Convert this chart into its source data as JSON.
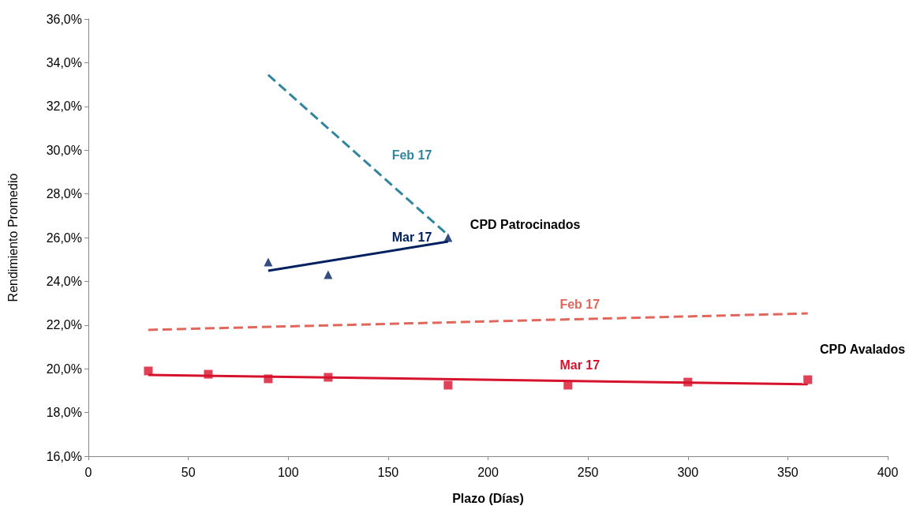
{
  "chart_data": {
    "type": "scatter",
    "xlabel": "Plazo (Días)",
    "ylabel": "Rendimiento Promedio",
    "xlim": [
      0,
      400
    ],
    "xticks": [
      0,
      50,
      100,
      150,
      200,
      250,
      300,
      350,
      400
    ],
    "ylim": [
      16,
      36
    ],
    "yticks": [
      {
        "value": 16,
        "label": "16,0%"
      },
      {
        "value": 18,
        "label": "18,0%"
      },
      {
        "value": 20,
        "label": "20,0%"
      },
      {
        "value": 22,
        "label": "22,0%"
      },
      {
        "value": 24,
        "label": "24,0%"
      },
      {
        "value": 26,
        "label": "26,0%"
      },
      {
        "value": 28,
        "label": "28,0%"
      },
      {
        "value": 30,
        "label": "30,0%"
      },
      {
        "value": 32,
        "label": "32,0%"
      },
      {
        "value": 34,
        "label": "34,0%"
      },
      {
        "value": 36,
        "label": "36,0%"
      }
    ],
    "grid": false,
    "annotations": [
      "CPD Patrocinados",
      "CPD Avalados"
    ],
    "series": [
      {
        "type": "line",
        "name": "Feb 17",
        "color": "#31859c",
        "line_style": "dashed",
        "marker": "none",
        "x": [
          90,
          180
        ],
        "values": [
          33.44,
          26.11
        ]
      },
      {
        "color": "#002060",
        "marker": "triangle",
        "x": [
          90,
          120,
          180
        ],
        "values": [
          24.88,
          24.3,
          26.0
        ]
      },
      {
        "type": "line",
        "name": "Mar 17",
        "color": "#002060",
        "line_style": "solid",
        "marker": "none",
        "x": [
          90,
          180
        ],
        "values": [
          24.48,
          25.82
        ]
      },
      {
        "type": "line",
        "name": "Feb 17",
        "color": "#e0675c",
        "line_style": "dashed",
        "marker": "none",
        "x": [
          30,
          360
        ],
        "values": [
          21.78,
          22.53
        ]
      },
      {
        "color": "#d7122d",
        "marker": "square",
        "x": [
          30,
          60,
          90,
          120,
          180,
          240,
          300,
          360
        ],
        "values": [
          19.9,
          19.75,
          19.54,
          19.61,
          19.25,
          19.25,
          19.39,
          19.5
        ]
      },
      {
        "type": "line",
        "name": "Mar 17",
        "color": "#d7122d",
        "line_style": "solid",
        "marker": "none",
        "x": [
          30,
          360
        ],
        "values": [
          19.72,
          19.29
        ]
      }
    ]
  }
}
